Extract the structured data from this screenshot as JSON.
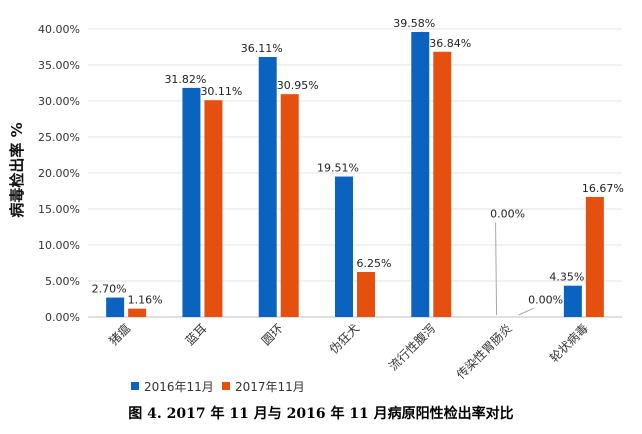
{
  "caption": "图 4. 2017 年 11 月与 2016 年 11 月病原阳性检出率对比",
  "chart_data": {
    "type": "bar",
    "categories": [
      "猪瘟",
      "蓝耳",
      "圆环",
      "伪狂犬",
      "流行性腹泻",
      "传染性胃肠炎",
      "轮状病毒"
    ],
    "series": [
      {
        "name": "2016年11月",
        "color": "#0b63c0",
        "values": [
          2.7,
          31.82,
          36.11,
          19.51,
          39.58,
          0.0,
          4.35
        ],
        "labels": [
          "2.70%",
          "31.82%",
          "36.11%",
          "19.51%",
          "39.58%",
          "0.00%",
          "4.35%"
        ]
      },
      {
        "name": "2017年11月",
        "color": "#e5500f",
        "values": [
          1.16,
          30.11,
          30.95,
          6.25,
          36.84,
          0.0,
          16.67
        ],
        "labels": [
          "1.16%",
          "30.11%",
          "30.95%",
          "6.25%",
          "36.84%",
          "0.00%",
          "16.67%"
        ]
      }
    ],
    "ylabel": "病毒检出率 %",
    "ylim": [
      0,
      40
    ],
    "yticks": [
      "0.00%",
      "5.00%",
      "10.00%",
      "15.00%",
      "20.00%",
      "25.00%",
      "30.00%",
      "35.00%",
      "40.00%"
    ],
    "grid": true,
    "legend_position": "bottom-left"
  }
}
